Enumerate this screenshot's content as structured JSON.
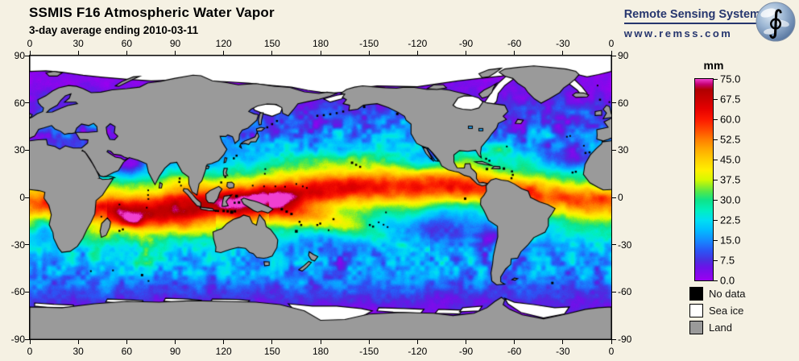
{
  "header": {
    "title": "SSMIS F16 Atmospheric Water Vapor",
    "subtitle": "3-day average ending 2010-03-11"
  },
  "branding": {
    "name": "Remote Sensing Systems",
    "url": "www.remss.com",
    "accent_color": "#26366e",
    "globe_symbol": "∮"
  },
  "chart_data": {
    "type": "heatmap",
    "title": "SSMIS F16 Atmospheric Water Vapor",
    "subtitle": "3-day average ending 2010-03-11",
    "variable": "columnar atmospheric water vapor",
    "units": "mm",
    "projection": "equirectangular",
    "lon_domain": [
      0,
      360
    ],
    "lat_domain": [
      -90,
      90
    ],
    "x_tick_labels": [
      "0",
      "30",
      "60",
      "90",
      "120",
      "150",
      "180",
      "-150",
      "-120",
      "-90",
      "-60",
      "-30",
      "0"
    ],
    "y_tick_labels": [
      "90",
      "60",
      "30",
      "0",
      "-30",
      "-60",
      "-90"
    ],
    "colorbar": {
      "label": "mm",
      "min": 0.0,
      "max": 75.0,
      "tick_labels": [
        "75.0",
        "67.5",
        "60.0",
        "52.5",
        "45.0",
        "37.5",
        "30.0",
        "22.5",
        "15.0",
        "7.5",
        "0.0"
      ],
      "stops": [
        [
          0,
          "#9B00F0"
        ],
        [
          5,
          "#6A14E8"
        ],
        [
          7.5,
          "#4A2FE0"
        ],
        [
          11,
          "#2B55F5"
        ],
        [
          15,
          "#148CFF"
        ],
        [
          19,
          "#00BFFF"
        ],
        [
          22.5,
          "#00DFF2"
        ],
        [
          26,
          "#00EFC0"
        ],
        [
          30,
          "#0FE387"
        ],
        [
          33,
          "#52E84A"
        ],
        [
          35.5,
          "#9CF01E"
        ],
        [
          37.5,
          "#D6F900"
        ],
        [
          41,
          "#FFF000"
        ],
        [
          45,
          "#FFCF00"
        ],
        [
          49,
          "#FFA800"
        ],
        [
          52.5,
          "#FF7D00"
        ],
        [
          56,
          "#FF4A00"
        ],
        [
          60,
          "#FC1800"
        ],
        [
          64,
          "#E50000"
        ],
        [
          67.5,
          "#C90000"
        ],
        [
          71,
          "#B00000"
        ],
        [
          73,
          "#C4006E"
        ],
        [
          75,
          "#F040D0"
        ]
      ]
    },
    "legend": [
      {
        "label": "No data",
        "color": "#000000"
      },
      {
        "label": "Sea ice",
        "color": "#FFFFFF"
      },
      {
        "label": "Land",
        "color": "#9A9A9A"
      }
    ],
    "field_summary": "ITCZ and west-Pacific warm pool 55-70 mm (red), subtropics 20-40 mm (green-yellow), midlatitudes 8-20 mm (blue-cyan), poleward of 55 deg under 8 mm (violet); sea ice white at high latitudes, land gray, small islands black (no data)"
  }
}
